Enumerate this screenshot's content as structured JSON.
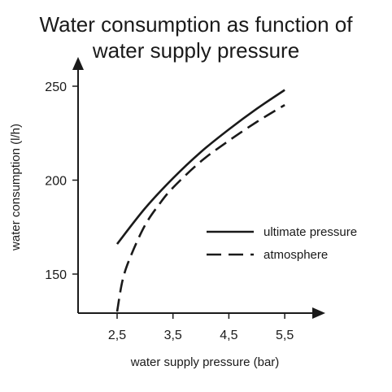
{
  "chart_data": {
    "type": "line",
    "title_lines": [
      "Water consumption as function of",
      "water supply pressure"
    ],
    "xlabel": "water supply pressure (bar)",
    "ylabel": "water consumption (l/h)",
    "x_ticks": [
      {
        "value": 2.5,
        "label": "2,5"
      },
      {
        "value": 3.5,
        "label": "3,5"
      },
      {
        "value": 4.5,
        "label": "4,5"
      },
      {
        "value": 5.5,
        "label": "5,5"
      }
    ],
    "y_ticks": [
      {
        "value": 150,
        "label": "150"
      },
      {
        "value": 200,
        "label": "200"
      },
      {
        "value": 250,
        "label": "250"
      }
    ],
    "xlim": [
      1.5,
      6.0
    ],
    "ylim": [
      130,
      262
    ],
    "grid": false,
    "legend_position": "right",
    "series": [
      {
        "name": "ultimate pressure",
        "style": "solid",
        "x": [
          2.5,
          3.0,
          3.5,
          4.0,
          4.5,
          5.0,
          5.5
        ],
        "y": [
          166,
          185,
          201,
          215,
          227,
          238,
          248
        ]
      },
      {
        "name": "atmosphere",
        "style": "dashed",
        "x": [
          2.5,
          2.6,
          2.75,
          3.0,
          3.25,
          3.5,
          4.0,
          4.5,
          5.0,
          5.5
        ],
        "y": [
          130,
          147,
          160,
          176,
          187,
          196,
          210,
          221,
          231,
          240
        ]
      }
    ]
  }
}
